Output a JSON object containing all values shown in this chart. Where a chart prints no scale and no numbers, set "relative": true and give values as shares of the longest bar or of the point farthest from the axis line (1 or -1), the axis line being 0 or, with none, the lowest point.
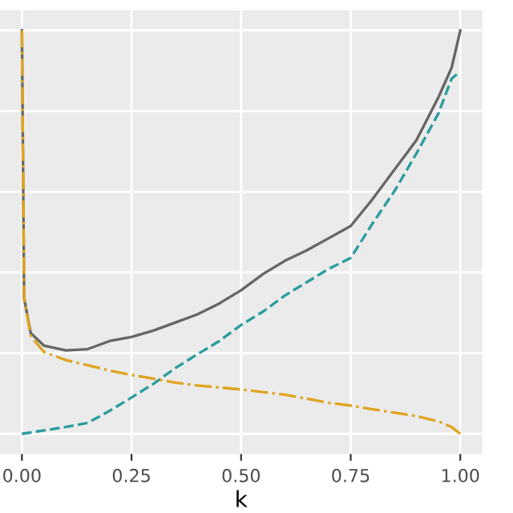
{
  "chart_data": {
    "type": "line",
    "relative": true,
    "xlabel": "k",
    "xlim": [
      -0.05,
      1.05
    ],
    "xticks": [
      {
        "value": 0,
        "label": "0.00"
      },
      {
        "value": 0.25,
        "label": "0.25"
      },
      {
        "value": 0.5,
        "label": "0.50"
      },
      {
        "value": 0.75,
        "label": "0.75"
      },
      {
        "value": 1,
        "label": "1.00"
      }
    ],
    "grid": true,
    "tick_labels": "x",
    "series": [
      {
        "color": "#666666",
        "line_style": "solid",
        "x": [
          0,
          0.005,
          0.02,
          0.05,
          0.1,
          0.15,
          0.2,
          0.25,
          0.3,
          0.35,
          0.4,
          0.45,
          0.5,
          0.55,
          0.6,
          0.65,
          0.7,
          0.75,
          0.8,
          0.85,
          0.9,
          0.95,
          0.98,
          1.0
        ],
        "values": [
          1.0,
          0.336,
          0.25,
          0.219,
          0.207,
          0.21,
          0.23,
          0.24,
          0.256,
          0.276,
          0.296,
          0.323,
          0.356,
          0.396,
          0.429,
          0.455,
          0.485,
          0.515,
          0.582,
          0.655,
          0.728,
          0.834,
          0.907,
          1.0
        ]
      },
      {
        "color": "#2a9d9f",
        "line_style": "dashed",
        "x": [
          0,
          0.1,
          0.15,
          0.2,
          0.25,
          0.3,
          0.35,
          0.4,
          0.45,
          0.5,
          0.55,
          0.6,
          0.65,
          0.7,
          0.75,
          0.8,
          0.85,
          0.9,
          0.95,
          0.98,
          0.995
        ],
        "values": [
          0,
          0.017,
          0.027,
          0.057,
          0.09,
          0.124,
          0.163,
          0.197,
          0.23,
          0.27,
          0.303,
          0.343,
          0.376,
          0.409,
          0.436,
          0.522,
          0.602,
          0.695,
          0.794,
          0.88,
          0.894
        ]
      },
      {
        "color": "#e0a420",
        "line_style": "dashdot",
        "x": [
          0,
          0.005,
          0.02,
          0.05,
          0.1,
          0.15,
          0.2,
          0.25,
          0.3,
          0.35,
          0.4,
          0.5,
          0.6,
          0.7,
          0.75,
          0.8,
          0.9,
          0.95,
          0.98,
          1.0
        ],
        "values": [
          1.0,
          0.336,
          0.243,
          0.203,
          0.183,
          0.17,
          0.157,
          0.146,
          0.137,
          0.127,
          0.12,
          0.11,
          0.097,
          0.077,
          0.07,
          0.061,
          0.044,
          0.031,
          0.017,
          0
        ]
      }
    ]
  }
}
